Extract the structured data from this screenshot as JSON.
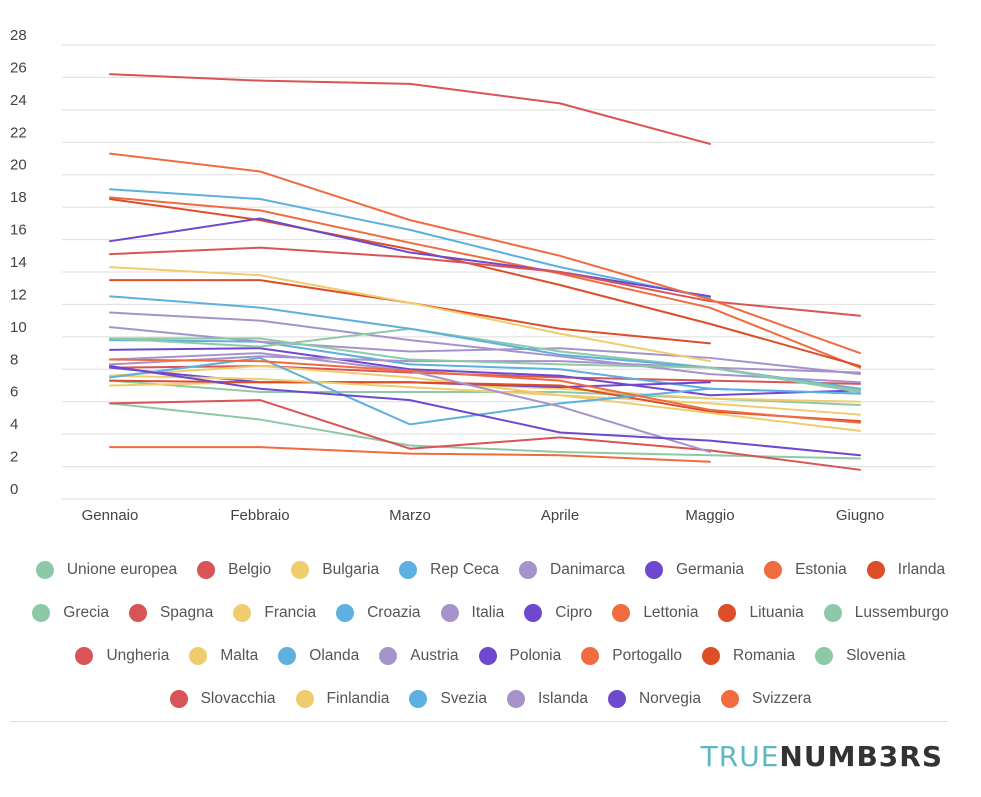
{
  "chart_data": {
    "type": "line",
    "categories": [
      "Gennaio",
      "Febbraio",
      "Marzo",
      "Aprile",
      "Maggio",
      "Giugno"
    ],
    "ylim": [
      0,
      28
    ],
    "yticks": [
      0,
      2,
      4,
      6,
      8,
      10,
      12,
      14,
      16,
      18,
      20,
      22,
      24,
      26,
      28
    ],
    "grid": true,
    "legend_position": "bottom",
    "series": [
      {
        "name": "Unione europea",
        "color": "#8ec9a7",
        "values": [
          7.3,
          6.6,
          6.6,
          6.6,
          6.2,
          5.8
        ]
      },
      {
        "name": "Belgio",
        "color": "#d95456",
        "values": [
          8.1,
          8.2,
          7.8,
          7.5,
          7.3,
          7.1
        ]
      },
      {
        "name": "Bulgaria",
        "color": "#efcd6e",
        "values": [
          7.0,
          7.2,
          7.2,
          6.8,
          6.2,
          6.0
        ]
      },
      {
        "name": "Rep Ceca",
        "color": "#5db0df",
        "values": [
          9.8,
          9.7,
          8.3,
          8.0,
          6.8,
          6.5
        ]
      },
      {
        "name": "Danimarca",
        "color": "#a793cb",
        "values": [
          10.6,
          9.7,
          9.1,
          9.3,
          8.7,
          7.7
        ]
      },
      {
        "name": "Germania",
        "color": "#6e49cf",
        "values": [
          9.2,
          9.3,
          8.0,
          7.6,
          6.4,
          6.7
        ]
      },
      {
        "name": "Estonia",
        "color": "#f16b3e",
        "values": [
          18.6,
          17.8,
          15.8,
          13.9,
          11.8,
          8.1
        ]
      },
      {
        "name": "Irlanda",
        "color": "#dd4d27",
        "values": [
          18.5,
          17.2,
          15.4,
          13.2,
          10.8,
          8.2
        ]
      },
      {
        "name": "Grecia",
        "color": "#8ec9a7",
        "values": [
          5.9,
          4.9,
          3.3,
          2.9,
          2.7,
          2.5
        ]
      },
      {
        "name": "Spagna",
        "color": "#d95456",
        "values": [
          26.2,
          25.8,
          25.6,
          24.4,
          21.9,
          null
        ]
      },
      {
        "name": "Francia",
        "color": "#efcd6e",
        "values": [
          7.6,
          8.2,
          7.5,
          6.4,
          5.9,
          5.2
        ]
      },
      {
        "name": "Croazia",
        "color": "#5db0df",
        "values": [
          19.1,
          18.5,
          16.6,
          14.3,
          12.4,
          null
        ]
      },
      {
        "name": "Italia",
        "color": "#a793cb",
        "values": [
          11.5,
          11.0,
          9.8,
          8.8,
          7.7,
          7.2
        ]
      },
      {
        "name": "Cipro",
        "color": "#6e49cf",
        "values": [
          15.9,
          17.3,
          15.2,
          14.0,
          12.5,
          null
        ]
      },
      {
        "name": "Lettonia",
        "color": "#f16b3e",
        "values": [
          3.2,
          3.2,
          2.8,
          2.7,
          2.3,
          null
        ]
      },
      {
        "name": "Lituania",
        "color": "#dd4d27",
        "values": [
          13.5,
          13.5,
          12.1,
          10.5,
          9.6,
          null
        ]
      },
      {
        "name": "Lussemburgo",
        "color": "#8ec9a7",
        "values": [
          9.9,
          9.4,
          10.5,
          9.1,
          8.1,
          6.6
        ]
      },
      {
        "name": "Ungheria",
        "color": "#d95456",
        "values": [
          15.1,
          15.5,
          14.9,
          14.0,
          12.2,
          11.3
        ]
      },
      {
        "name": "Malta",
        "color": "#efcd6e",
        "values": [
          14.3,
          13.8,
          12.1,
          10.2,
          8.5,
          null
        ]
      },
      {
        "name": "Olanda",
        "color": "#5db0df",
        "values": [
          12.5,
          11.8,
          10.5,
          8.9,
          8.1,
          6.8
        ]
      },
      {
        "name": "Austria",
        "color": "#a793cb",
        "values": [
          8.3,
          8.8,
          8.5,
          8.5,
          8.1,
          7.8
        ]
      },
      {
        "name": "Polonia",
        "color": "#6e49cf",
        "values": [
          8.1,
          7.2,
          7.2,
          6.9,
          7.2,
          null
        ]
      },
      {
        "name": "Portogallo",
        "color": "#f16b3e",
        "values": [
          21.3,
          20.2,
          17.2,
          15.0,
          12.3,
          9.0
        ]
      },
      {
        "name": "Romania",
        "color": "#dd4d27",
        "values": [
          7.3,
          7.2,
          7.2,
          7.0,
          5.4,
          4.8
        ]
      },
      {
        "name": "Slovenia",
        "color": "#8ec9a7",
        "values": [
          9.9,
          9.9,
          8.6,
          8.3,
          8.1,
          6.7
        ]
      },
      {
        "name": "Slovacchia",
        "color": "#d95456",
        "values": [
          5.9,
          6.1,
          3.1,
          3.8,
          3.0,
          1.8
        ]
      },
      {
        "name": "Finlandia",
        "color": "#efcd6e",
        "values": [
          7.6,
          7.4,
          6.9,
          6.4,
          5.3,
          4.2
        ]
      },
      {
        "name": "Svezia",
        "color": "#5db0df",
        "values": [
          7.5,
          8.7,
          4.6,
          5.9,
          6.8,
          6.5
        ]
      },
      {
        "name": "Islanda",
        "color": "#a793cb",
        "values": [
          8.6,
          9.0,
          7.9,
          5.7,
          2.9,
          null
        ]
      },
      {
        "name": "Norvegia",
        "color": "#6e49cf",
        "values": [
          8.2,
          6.8,
          6.1,
          4.1,
          3.6,
          2.7
        ]
      },
      {
        "name": "Svizzera",
        "color": "#f16b3e",
        "values": [
          8.6,
          8.5,
          7.9,
          7.3,
          5.5,
          4.7
        ]
      }
    ]
  },
  "legend_rows": [
    [
      "Unione europea",
      "Belgio",
      "Bulgaria",
      "Rep Ceca",
      "Danimarca",
      "Germania",
      "Estonia",
      "Irlanda"
    ],
    [
      "Grecia",
      "Spagna",
      "Francia",
      "Croazia",
      "Italia",
      "Cipro",
      "Lettonia",
      "Lituania",
      "Lussemburgo"
    ],
    [
      "Ungheria",
      "Malta",
      "Olanda",
      "Austria",
      "Polonia",
      "Portogallo",
      "Romania",
      "Slovenia"
    ],
    [
      "Slovacchia",
      "Finlandia",
      "Svezia",
      "Islanda",
      "Norvegia",
      "Svizzera"
    ]
  ],
  "brand": {
    "part1": "TRUE",
    "part2": "NUMB3RS"
  }
}
